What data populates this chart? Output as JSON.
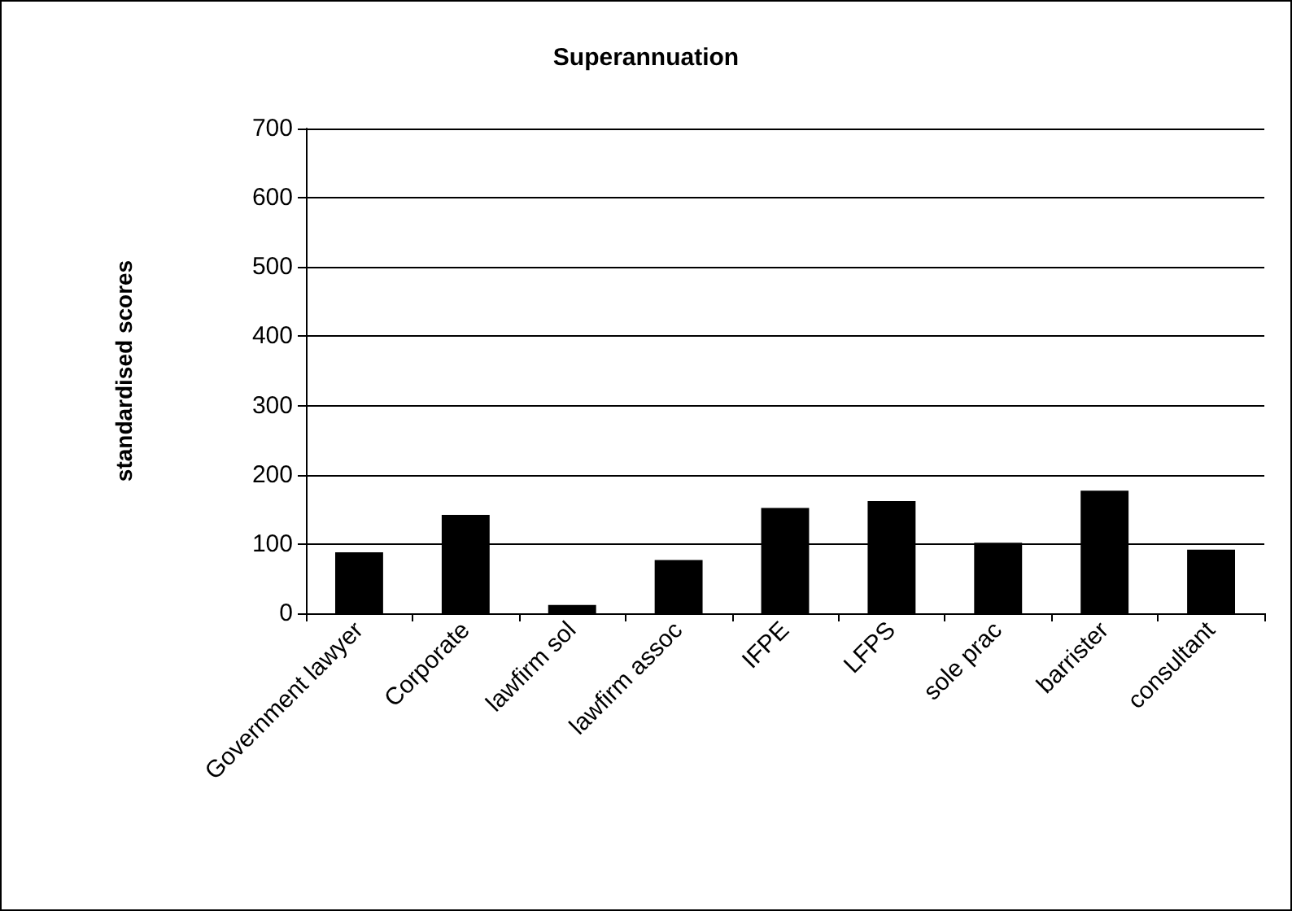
{
  "chart_data": {
    "type": "bar",
    "title": "Superannuation",
    "ylabel": "standardised scores",
    "categories": [
      "Government lawyer",
      "Corporate",
      "lawfirm sol",
      "lawfirm assoc",
      "IFPE",
      "LFPS",
      "sole prac",
      "barrister",
      "consultant"
    ],
    "values": [
      88,
      142,
      12,
      77,
      152,
      162,
      102,
      177,
      92
    ],
    "color": "#000000",
    "ylim": [
      0,
      700
    ],
    "yticks": [
      0,
      100,
      200,
      300,
      400,
      500,
      600,
      700
    ],
    "grid": "y"
  }
}
